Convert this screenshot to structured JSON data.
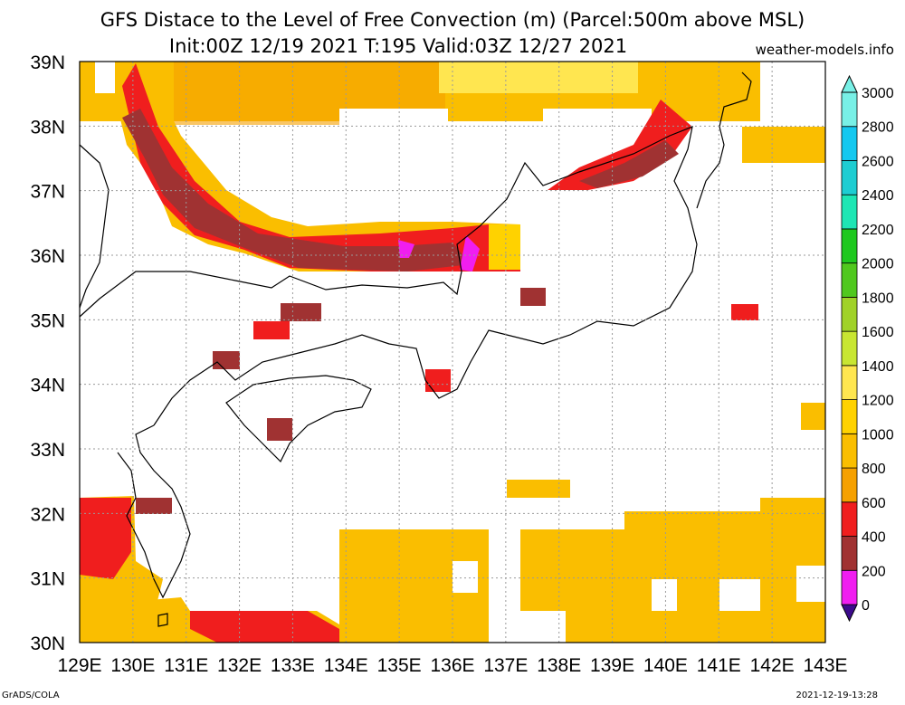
{
  "header": {
    "title_line1": "GFS Distace to the Level of Free Convection (m) (Parcel:500m above MSL)",
    "title_line2": "Init:00Z 12/19 2021 T:195 Valid:03Z 12/27 2021",
    "website": "weather-models.info"
  },
  "footer": {
    "left": "GrADS/COLA",
    "right": "2021-12-19-13:28"
  },
  "map": {
    "lon_labels": [
      "129E",
      "130E",
      "131E",
      "132E",
      "133E",
      "134E",
      "135E",
      "136E",
      "137E",
      "138E",
      "139E",
      "140E",
      "141E",
      "142E",
      "143E"
    ],
    "lat_labels": [
      "30N",
      "31N",
      "32N",
      "33N",
      "34N",
      "35N",
      "36N",
      "37N",
      "38N",
      "39N"
    ]
  },
  "colorbar": {
    "labels": [
      "0",
      "200",
      "400",
      "600",
      "800",
      "1000",
      "1200",
      "1400",
      "1600",
      "1800",
      "2000",
      "2200",
      "2400",
      "2600",
      "2800",
      "3000"
    ],
    "colors": [
      "#3c0a8c",
      "#f01ef0",
      "#a03232",
      "#f01e1e",
      "#f5a000",
      "#fabe00",
      "#ffd200",
      "#ffe650",
      "#c8e632",
      "#a0d228",
      "#50c81e",
      "#1ec81e",
      "#1ee6b4",
      "#1ecdd2",
      "#14c8f0",
      "#78f0e6"
    ]
  }
}
